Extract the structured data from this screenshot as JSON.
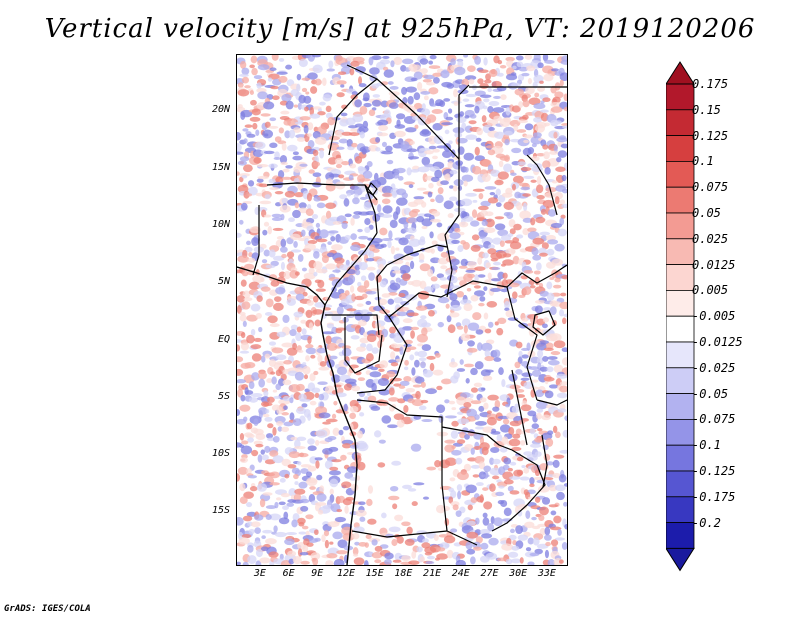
{
  "title": "Vertical velocity [m/s] at 925hPa, VT: 2019120206",
  "credit": "GrADS: IGES/COLA",
  "lat_ticks": [
    {
      "label": "20N",
      "lat": 20
    },
    {
      "label": "15N",
      "lat": 15
    },
    {
      "label": "10N",
      "lat": 10
    },
    {
      "label": "5N",
      "lat": 5
    },
    {
      "label": "EQ",
      "lat": 0
    },
    {
      "label": "5S",
      "lat": -5
    },
    {
      "label": "10S",
      "lat": -10
    },
    {
      "label": "15S",
      "lat": -15
    }
  ],
  "lon_ticks": [
    {
      "label": "3E",
      "lon": 3
    },
    {
      "label": "6E",
      "lon": 6
    },
    {
      "label": "9E",
      "lon": 9
    },
    {
      "label": "12E",
      "lon": 12
    },
    {
      "label": "15E",
      "lon": 15
    },
    {
      "label": "18E",
      "lon": 18
    },
    {
      "label": "21E",
      "lon": 21
    },
    {
      "label": "24E",
      "lon": 24
    },
    {
      "label": "27E",
      "lon": 27
    },
    {
      "label": "30E",
      "lon": 30
    },
    {
      "label": "33E",
      "lon": 33
    }
  ],
  "colorbar": {
    "levels": [
      {
        "label": "0.175",
        "color": "#b2182b"
      },
      {
        "label": "0.15",
        "color": "#c42a33"
      },
      {
        "label": "0.125",
        "color": "#d63f3f"
      },
      {
        "label": "0.1",
        "color": "#e35a55"
      },
      {
        "label": "0.075",
        "color": "#ec7a72"
      },
      {
        "label": "0.05",
        "color": "#f39b93"
      },
      {
        "label": "0.025",
        "color": "#f8bab3"
      },
      {
        "label": "0.0125",
        "color": "#fcd6d1"
      },
      {
        "label": "0.005",
        "color": "#feece9"
      },
      {
        "label": "-0.005",
        "color": "#ffffff"
      },
      {
        "label": "-0.0125",
        "color": "#e6e6fb"
      },
      {
        "label": "-0.025",
        "color": "#cdcdf6"
      },
      {
        "label": "-0.05",
        "color": "#b2b2f0"
      },
      {
        "label": "-0.075",
        "color": "#9494e8"
      },
      {
        "label": "-0.1",
        "color": "#7676df"
      },
      {
        "label": "-0.125",
        "color": "#5656d2"
      },
      {
        "label": "-0.175",
        "color": "#3838c1"
      },
      {
        "label": "-0.2",
        "color": "#1c1cab"
      }
    ],
    "top_triangle_color": "#a01020",
    "bottom_triangle_color": "#1a1a9e"
  },
  "map": {
    "lon_range": [
      0.5,
      35
    ],
    "lat_range": [
      -19.5,
      25
    ],
    "field_colors": {
      "neg_strong": "#7d7de0",
      "neg_mid": "#a9a9ee",
      "neg_weak": "#d6d6f7",
      "pos_weak": "#fbdcd8",
      "pos_mid": "#f5aaa2",
      "pos_strong": "#ec7f76"
    }
  }
}
